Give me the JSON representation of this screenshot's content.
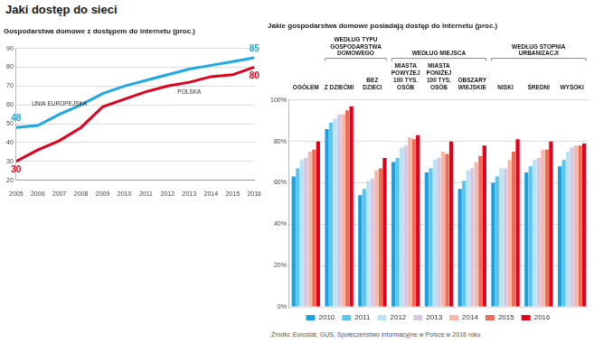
{
  "heading": "Jaki dostęp do sieci",
  "source": "Źródło: Eurostat, GUS, Społeczeństwo informacyjne w Polsce w 2016 roku",
  "chart_data": [
    {
      "type": "line",
      "title": "Gospodarstwa domowe z dostępem do internetu (proc.)",
      "categories": [
        "2005",
        "2006",
        "2007",
        "2008",
        "2009",
        "2010",
        "2011",
        "2012",
        "2013",
        "2014",
        "2015",
        "2016"
      ],
      "series": [
        {
          "name": "UNIA EUROPEJSKA",
          "color": "#1fa8e8",
          "values": [
            48,
            49,
            55,
            60,
            66,
            70,
            73,
            76,
            79,
            81,
            83,
            85
          ],
          "value_labels": [
            "48",
            null,
            null,
            null,
            null,
            null,
            null,
            null,
            null,
            null,
            null,
            "85"
          ]
        },
        {
          "name": "POLSKA",
          "color": "#e3001b",
          "values": [
            30,
            36,
            41,
            48,
            59,
            63,
            67,
            70,
            72,
            75,
            76,
            80
          ],
          "value_labels": [
            "30",
            null,
            null,
            null,
            null,
            null,
            null,
            null,
            null,
            null,
            null,
            "80"
          ]
        }
      ],
      "ylim": [
        20,
        90
      ],
      "yticks": [
        20,
        30,
        40,
        50,
        60,
        70,
        80,
        90
      ],
      "grid": true
    },
    {
      "type": "bar",
      "title": "Jakie gospodarstwa domowe posiadają dostęp do internetu (proc.)",
      "categories": [
        "OGÓŁEM",
        "Z DZIEĆMI",
        "BEZ DZIECI",
        "MIASTA POWYŻEJ 100 TYS. OSÓB",
        "MIASTA PONIŻEJ 100 TYS. OSÓB",
        "OBSZARY WIEJSKIE",
        "NISKI",
        "ŚREDNI",
        "WYSOKI"
      ],
      "groups": [
        {
          "name": "WEDŁUG TYPU GOSPODARSTWA DOMOWEGO",
          "categories": [
            "Z DZIEĆMI",
            "BEZ DZIECI"
          ]
        },
        {
          "name": "WEDŁUG MIEJSCA",
          "categories": [
            "MIASTA POWYŻEJ 100 TYS. OSÓB",
            "MIASTA PONIŻEJ 100 TYS. OSÓB",
            "OBSZARY WIEJSKIE"
          ]
        },
        {
          "name": "WEDŁUG STOPNIA URBANIZACJI",
          "categories": [
            "NISKI",
            "ŚREDNI",
            "WYSOKI"
          ]
        }
      ],
      "series": [
        {
          "name": "2010",
          "color": "#1ba0e1",
          "values": [
            63,
            86,
            54,
            70,
            65,
            57,
            60,
            65,
            68
          ]
        },
        {
          "name": "2011",
          "color": "#5cc6ef",
          "values": [
            67,
            89,
            57,
            72,
            67,
            61,
            63,
            68,
            71
          ]
        },
        {
          "name": "2012",
          "color": "#b9e2f4",
          "values": [
            71,
            91,
            61,
            77,
            71,
            66,
            67,
            71,
            75
          ]
        },
        {
          "name": "2013",
          "color": "#d8c6e3",
          "values": [
            72,
            93,
            62,
            78,
            72,
            67,
            67,
            72,
            77
          ]
        },
        {
          "name": "2014",
          "color": "#f6b9a9",
          "values": [
            75,
            93,
            66,
            82,
            75,
            70,
            71,
            76,
            78
          ]
        },
        {
          "name": "2015",
          "color": "#ee6c55",
          "values": [
            76,
            95,
            67,
            81,
            74,
            73,
            75,
            76,
            78
          ]
        },
        {
          "name": "2016",
          "color": "#e3001b",
          "values": [
            80,
            97,
            72,
            83,
            80,
            78,
            81,
            80,
            79
          ]
        }
      ],
      "ylim": [
        0,
        100
      ],
      "yticks": [
        {
          "value": 0,
          "label": "0%"
        },
        {
          "value": 20,
          "label": "20%"
        },
        {
          "value": 40,
          "label": "40%"
        },
        {
          "value": 60,
          "label": "60%"
        },
        {
          "value": 80,
          "label": "80%"
        },
        {
          "value": 100,
          "label": "100%"
        }
      ],
      "grid": true,
      "legend": "bottom"
    }
  ]
}
